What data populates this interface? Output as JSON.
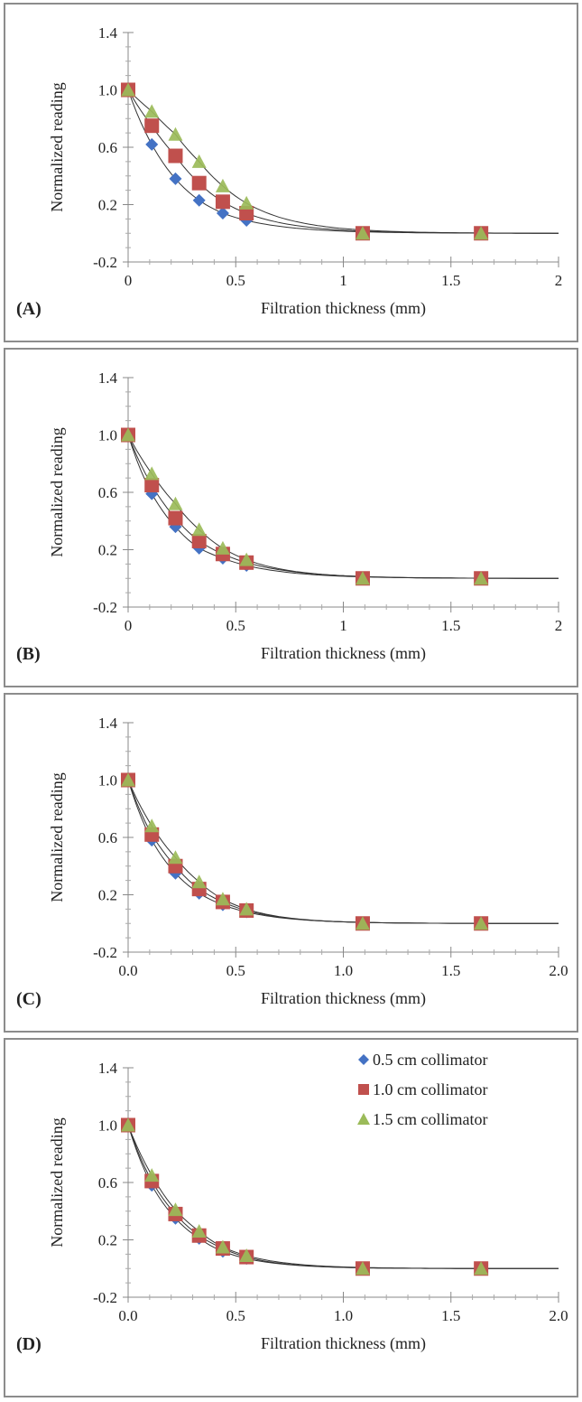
{
  "legend": [
    {
      "name": "0.5 cm collimator",
      "color": "#4472C4",
      "marker": "diamond"
    },
    {
      "name": "1.0 cm collimator",
      "color": "#C0504D",
      "marker": "square"
    },
    {
      "name": "1.5 cm collimator",
      "color": "#9BBB59",
      "marker": "triangle"
    }
  ],
  "chart_data": [
    {
      "panel_label": "(A)",
      "type": "scatter",
      "xlabel": "Filtration thickness (mm)",
      "ylabel": "Normalized reading",
      "xlim": [
        0,
        2
      ],
      "ylim": [
        -0.2,
        1.4
      ],
      "xticks": [
        "0",
        "0.5",
        "1",
        "1.5",
        "2"
      ],
      "yticks": [
        "-0.2",
        "0.2",
        "0.6",
        "1.0",
        "1.4"
      ],
      "fit_lines": true,
      "legend": false,
      "series": [
        {
          "name": "0.5 cm collimator",
          "x": [
            0,
            0.11,
            0.22,
            0.33,
            0.44,
            0.55,
            1.09,
            1.64
          ],
          "y": [
            1.0,
            0.62,
            0.38,
            0.23,
            0.14,
            0.09,
            0.0,
            0.0
          ]
        },
        {
          "name": "1.0 cm collimator",
          "x": [
            0,
            0.11,
            0.22,
            0.33,
            0.44,
            0.55,
            1.09,
            1.64
          ],
          "y": [
            1.0,
            0.75,
            0.54,
            0.35,
            0.22,
            0.14,
            0.0,
            0.0
          ]
        },
        {
          "name": "1.5 cm collimator",
          "x": [
            0,
            0.11,
            0.22,
            0.33,
            0.44,
            0.55,
            1.09,
            1.64
          ],
          "y": [
            1.0,
            0.85,
            0.69,
            0.5,
            0.33,
            0.21,
            0.0,
            0.0
          ]
        }
      ]
    },
    {
      "panel_label": "(B)",
      "type": "scatter",
      "xlabel": "Filtration thickness (mm)",
      "ylabel": "Normalized reading",
      "xlim": [
        0,
        2
      ],
      "ylim": [
        -0.2,
        1.4
      ],
      "xticks": [
        "0",
        "0.5",
        "1",
        "1.5",
        "2"
      ],
      "yticks": [
        "-0.2",
        "0.2",
        "0.6",
        "1.0",
        "1.4"
      ],
      "fit_lines": true,
      "legend": false,
      "series": [
        {
          "name": "0.5 cm collimator",
          "x": [
            0,
            0.11,
            0.22,
            0.33,
            0.44,
            0.55,
            1.09,
            1.64
          ],
          "y": [
            1.0,
            0.59,
            0.36,
            0.21,
            0.14,
            0.09,
            0.0,
            0.0
          ]
        },
        {
          "name": "1.0 cm collimator",
          "x": [
            0,
            0.11,
            0.22,
            0.33,
            0.44,
            0.55,
            1.09,
            1.64
          ],
          "y": [
            1.0,
            0.65,
            0.42,
            0.26,
            0.17,
            0.11,
            0.0,
            0.0
          ]
        },
        {
          "name": "1.5 cm collimator",
          "x": [
            0,
            0.11,
            0.22,
            0.33,
            0.44,
            0.55,
            1.09,
            1.64
          ],
          "y": [
            1.0,
            0.73,
            0.52,
            0.34,
            0.21,
            0.13,
            0.0,
            0.0
          ]
        }
      ]
    },
    {
      "panel_label": "(C)",
      "type": "scatter",
      "xlabel": "Filtration thickness (mm)",
      "ylabel": "Normalized reading",
      "xlim": [
        0,
        2
      ],
      "ylim": [
        -0.2,
        1.4
      ],
      "xticks": [
        "0.0",
        "0.5",
        "1.0",
        "1.5",
        "2.0"
      ],
      "yticks": [
        "-0.2",
        "0.2",
        "0.6",
        "1.0",
        "1.4"
      ],
      "fit_lines": true,
      "legend": false,
      "series": [
        {
          "name": "0.5 cm collimator",
          "x": [
            0,
            0.11,
            0.22,
            0.33,
            0.44,
            0.55,
            1.09,
            1.64
          ],
          "y": [
            1.0,
            0.58,
            0.35,
            0.21,
            0.13,
            0.08,
            0.0,
            0.0
          ]
        },
        {
          "name": "1.0 cm collimator",
          "x": [
            0,
            0.11,
            0.22,
            0.33,
            0.44,
            0.55,
            1.09,
            1.64
          ],
          "y": [
            1.0,
            0.62,
            0.4,
            0.24,
            0.15,
            0.09,
            0.0,
            0.0
          ]
        },
        {
          "name": "1.5 cm collimator",
          "x": [
            0,
            0.11,
            0.22,
            0.33,
            0.44,
            0.55,
            1.09,
            1.64
          ],
          "y": [
            1.0,
            0.68,
            0.46,
            0.29,
            0.17,
            0.1,
            0.0,
            0.0
          ]
        }
      ]
    },
    {
      "panel_label": "(D)",
      "type": "scatter",
      "xlabel": "Filtration thickness (mm)",
      "ylabel": "Normalized reading",
      "xlim": [
        0,
        2
      ],
      "ylim": [
        -0.2,
        1.4
      ],
      "xticks": [
        "0.0",
        "0.5",
        "1.0",
        "1.5",
        "2.0"
      ],
      "yticks": [
        "-0.2",
        "0.2",
        "0.6",
        "1.0",
        "1.4"
      ],
      "fit_lines": true,
      "legend": true,
      "legend_position": "top-right",
      "series": [
        {
          "name": "0.5 cm collimator",
          "x": [
            0,
            0.11,
            0.22,
            0.33,
            0.44,
            0.55,
            1.09,
            1.64
          ],
          "y": [
            1.0,
            0.58,
            0.35,
            0.21,
            0.12,
            0.07,
            0.0,
            0.0
          ]
        },
        {
          "name": "1.0 cm collimator",
          "x": [
            0,
            0.11,
            0.22,
            0.33,
            0.44,
            0.55,
            1.09,
            1.64
          ],
          "y": [
            1.0,
            0.61,
            0.38,
            0.23,
            0.14,
            0.08,
            0.0,
            0.0
          ]
        },
        {
          "name": "1.5 cm collimator",
          "x": [
            0,
            0.11,
            0.22,
            0.33,
            0.44,
            0.55,
            1.09,
            1.64
          ],
          "y": [
            1.0,
            0.65,
            0.41,
            0.26,
            0.15,
            0.09,
            0.0,
            0.0
          ]
        }
      ]
    }
  ]
}
